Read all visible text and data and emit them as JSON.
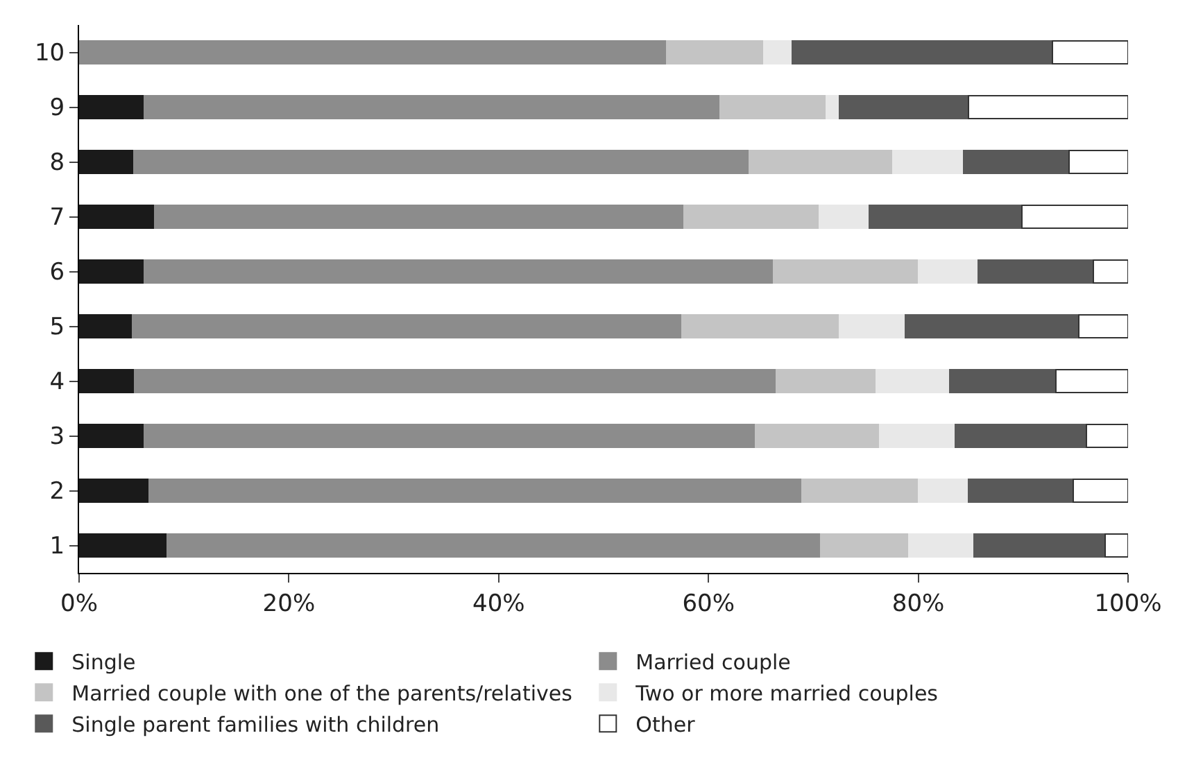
{
  "chart_data": {
    "type": "bar",
    "orientation": "horizontal",
    "stacked": true,
    "categories": [
      "10",
      "9",
      "8",
      "7",
      "6",
      "5",
      "4",
      "3",
      "2",
      "1"
    ],
    "series": [
      {
        "name": "Single",
        "color": "#1a1a1a",
        "values": [
          0,
          6.2,
          5.2,
          7.2,
          6.2,
          5.1,
          5.3,
          6.2,
          6.7,
          8.4
        ]
      },
      {
        "name": "Married couple",
        "color": "#8c8c8c",
        "values": [
          56.0,
          54.9,
          58.7,
          50.5,
          60.0,
          52.4,
          61.2,
          58.3,
          62.2,
          62.3
        ]
      },
      {
        "name": "Married couple with one of the parents/relatives",
        "color": "#c4c4c4",
        "values": [
          9.3,
          10.1,
          13.7,
          12.9,
          13.8,
          15.0,
          9.5,
          11.8,
          11.1,
          8.4
        ]
      },
      {
        "name": "Two or more married couples",
        "color": "#e8e8e8",
        "values": [
          2.7,
          1.3,
          6.7,
          4.7,
          5.7,
          6.3,
          7.0,
          7.2,
          4.8,
          6.2
        ]
      },
      {
        "name": "Single parent families with children",
        "color": "#595959",
        "values": [
          24.8,
          12.3,
          10.1,
          14.6,
          11.0,
          16.5,
          10.1,
          12.5,
          10.0,
          12.5
        ]
      },
      {
        "name": "Other",
        "color": "#ffffff",
        "values": [
          7.2,
          15.2,
          5.6,
          10.1,
          3.3,
          4.7,
          6.9,
          4.0,
          5.2,
          2.2
        ]
      }
    ],
    "xlim": [
      0,
      100
    ],
    "xticks": [
      {
        "value": 0,
        "label": "0%"
      },
      {
        "value": 20,
        "label": "20%"
      },
      {
        "value": 40,
        "label": "40%"
      },
      {
        "value": 60,
        "label": "60%"
      },
      {
        "value": 80,
        "label": "80%"
      },
      {
        "value": 100,
        "label": "100%"
      }
    ],
    "legend": "bottom"
  }
}
